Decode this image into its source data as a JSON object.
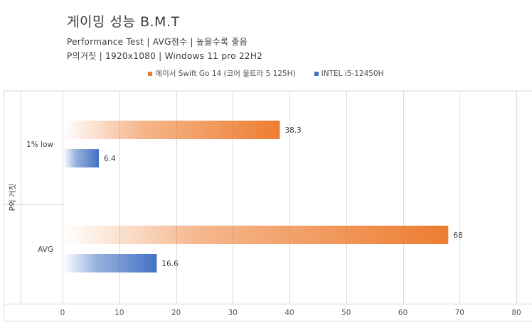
{
  "chart_data": {
    "type": "bar",
    "orientation": "horizontal",
    "title": "게이밍 성능 B.M.T",
    "subtitle_lines": [
      "Performance Test | AVG점수 | 높을수록 좋음",
      "P의거짓 | 1920x1080 | Windows 11 pro 22H2"
    ],
    "ylabel": "P의 거짓",
    "xlabel": "",
    "categories": [
      "1% low",
      "AVG"
    ],
    "series": [
      {
        "name": "에이서 Swift Go 14 (코어 울트라 5 125H)",
        "values": [
          38.3,
          68
        ],
        "color": "#ed7d31"
      },
      {
        "name": "INTEL i5-12450H",
        "values": [
          6.4,
          16.6
        ],
        "color": "#4472c4"
      }
    ],
    "xlim": [
      0,
      80
    ],
    "xticks": [
      0,
      10,
      20,
      30,
      40,
      50,
      60,
      70,
      80
    ],
    "grid": true,
    "legend_position": "top"
  }
}
